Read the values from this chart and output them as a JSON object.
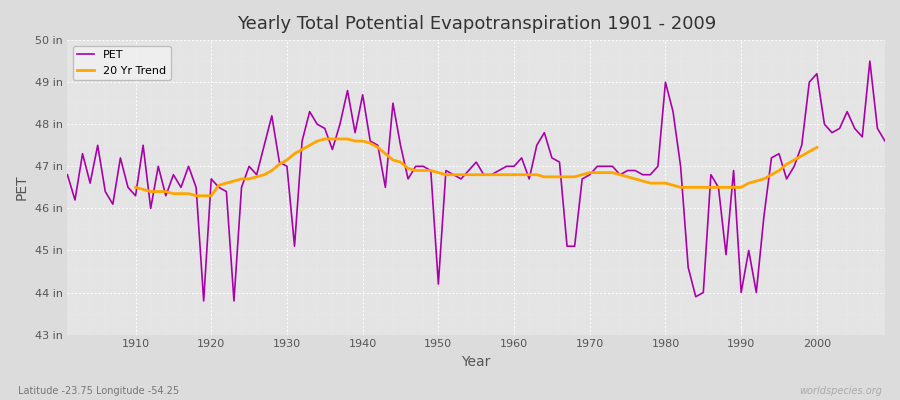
{
  "title": "Yearly Total Potential Evapotranspiration 1901 - 2009",
  "xlabel": "Year",
  "ylabel": "PET",
  "subtitle": "Latitude -23.75 Longitude -54.25",
  "watermark": "worldspecies.org",
  "bg_color": "#dcdcdc",
  "plot_bg_color": "#e4e4e4",
  "pet_color": "#aa00aa",
  "trend_color": "#ffa500",
  "ylim": [
    43,
    50
  ],
  "yticks": [
    43,
    44,
    45,
    46,
    47,
    48,
    49,
    50
  ],
  "ytick_labels": [
    "43 in",
    "44 in",
    "45 in",
    "46 in",
    "47 in",
    "48 in",
    "49 in",
    "50 in"
  ],
  "xlim": [
    1901,
    2009
  ],
  "xticks": [
    1910,
    1920,
    1930,
    1940,
    1950,
    1960,
    1970,
    1980,
    1990,
    2000
  ],
  "years": [
    1901,
    1902,
    1903,
    1904,
    1905,
    1906,
    1907,
    1908,
    1909,
    1910,
    1911,
    1912,
    1913,
    1914,
    1915,
    1916,
    1917,
    1918,
    1919,
    1920,
    1921,
    1922,
    1923,
    1924,
    1925,
    1926,
    1927,
    1928,
    1929,
    1930,
    1931,
    1932,
    1933,
    1934,
    1935,
    1936,
    1937,
    1938,
    1939,
    1940,
    1941,
    1942,
    1943,
    1944,
    1945,
    1946,
    1947,
    1948,
    1949,
    1950,
    1951,
    1952,
    1953,
    1954,
    1955,
    1956,
    1957,
    1958,
    1959,
    1960,
    1961,
    1962,
    1963,
    1964,
    1965,
    1966,
    1967,
    1968,
    1969,
    1970,
    1971,
    1972,
    1973,
    1974,
    1975,
    1976,
    1977,
    1978,
    1979,
    1980,
    1981,
    1982,
    1983,
    1984,
    1985,
    1986,
    1987,
    1988,
    1989,
    1990,
    1991,
    1992,
    1993,
    1994,
    1995,
    1996,
    1997,
    1998,
    1999,
    2000,
    2001,
    2002,
    2003,
    2004,
    2005,
    2006,
    2007,
    2008,
    2009
  ],
  "pet_values": [
    46.8,
    46.2,
    47.3,
    46.6,
    47.5,
    46.4,
    46.1,
    47.2,
    46.5,
    46.3,
    47.5,
    46.0,
    47.0,
    46.3,
    46.8,
    46.5,
    47.0,
    46.5,
    43.8,
    46.7,
    46.5,
    46.4,
    43.8,
    46.5,
    47.0,
    46.8,
    47.5,
    48.2,
    47.1,
    47.0,
    45.1,
    47.6,
    48.3,
    48.0,
    47.9,
    47.4,
    48.0,
    48.8,
    47.8,
    48.7,
    47.6,
    47.5,
    46.5,
    48.5,
    47.5,
    46.7,
    47.0,
    47.0,
    46.9,
    44.2,
    46.9,
    46.8,
    46.7,
    46.9,
    47.1,
    46.8,
    46.8,
    46.9,
    47.0,
    47.0,
    47.2,
    46.7,
    47.5,
    47.8,
    47.2,
    47.1,
    45.1,
    45.1,
    46.7,
    46.8,
    47.0,
    47.0,
    47.0,
    46.8,
    46.9,
    46.9,
    46.8,
    46.8,
    47.0,
    49.0,
    48.3,
    47.0,
    44.6,
    43.9,
    44.0,
    46.8,
    46.5,
    44.9,
    46.9,
    44.0,
    45.0,
    44.0,
    45.8,
    47.2,
    47.3,
    46.7,
    47.0,
    47.5,
    49.0,
    49.2,
    48.0,
    47.8,
    47.9,
    48.3,
    47.9,
    47.7,
    49.5,
    47.9,
    47.6
  ],
  "trend_values": [
    null,
    null,
    null,
    null,
    null,
    null,
    null,
    null,
    null,
    46.5,
    46.45,
    46.4,
    46.4,
    46.4,
    46.35,
    46.35,
    46.35,
    46.3,
    46.3,
    46.3,
    46.55,
    46.6,
    46.65,
    46.7,
    46.7,
    46.75,
    46.8,
    46.9,
    47.05,
    47.15,
    47.3,
    47.4,
    47.5,
    47.6,
    47.65,
    47.65,
    47.65,
    47.65,
    47.6,
    47.6,
    47.55,
    47.45,
    47.3,
    47.15,
    47.1,
    46.95,
    46.9,
    46.9,
    46.9,
    46.85,
    46.8,
    46.8,
    46.8,
    46.8,
    46.8,
    46.8,
    46.8,
    46.8,
    46.8,
    46.8,
    46.8,
    46.8,
    46.8,
    46.75,
    46.75,
    46.75,
    46.75,
    46.75,
    46.8,
    46.85,
    46.85,
    46.85,
    46.85,
    46.8,
    46.75,
    46.7,
    46.65,
    46.6,
    46.6,
    46.6,
    46.55,
    46.5,
    46.5,
    46.5,
    46.5,
    46.5,
    46.5,
    46.5,
    46.5,
    46.5,
    46.6,
    46.65,
    46.7,
    46.8,
    46.9,
    47.05,
    47.15,
    47.25,
    47.35,
    47.45,
    null,
    null,
    null,
    null,
    null,
    null,
    null,
    null,
    null
  ]
}
